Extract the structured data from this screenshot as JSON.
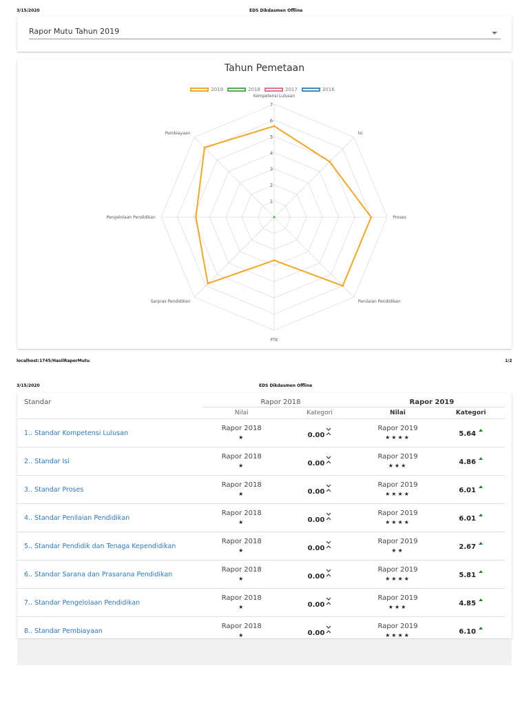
{
  "page1": {
    "header_date": "3/15/2020",
    "header_title": "EDS Dikdasmen Offline",
    "select_value": "Rapor Mutu Tahun 2019",
    "footer_url": "localhost:1745/HasilRaporMutu",
    "footer_page": "1/2"
  },
  "page2": {
    "header_date": "3/15/2020",
    "header_title": "EDS Dikdasmen Offline"
  },
  "chart_data": {
    "type": "radar",
    "title": "Tahun Pemetaan",
    "axes": [
      "Kompetensi Lulusan",
      "Isi",
      "Proses",
      "Penilaian Pendidikan",
      "PTK",
      "Sarpras Pendidikan",
      "Pengelolaan Pendidikan",
      "Pembiayaan"
    ],
    "tick_labels": [
      "1",
      "2",
      "3",
      "4",
      "5",
      "6",
      "7"
    ],
    "range": [
      0,
      7
    ],
    "series": [
      {
        "name": "2019",
        "color": "#f5a623",
        "values": [
          5.64,
          4.86,
          6.01,
          6.01,
          2.67,
          5.81,
          4.85,
          6.1
        ]
      },
      {
        "name": "2018",
        "color": "#4caf50",
        "values": [
          0,
          0,
          0,
          0,
          0,
          0,
          0,
          0
        ]
      },
      {
        "name": "2017",
        "color": "#e57385",
        "values": []
      },
      {
        "name": "2016",
        "color": "#3a8fc2",
        "values": []
      }
    ]
  },
  "table": {
    "col_standar": "Standar",
    "group_2018": "Rapor 2018",
    "group_2019": "Rapor 2019",
    "sub_nilai": "Nilai",
    "sub_nilai_2019": "Nilai",
    "sub_kategori": "Kategori",
    "sub_kategori_2019": "Kategori",
    "rows": [
      {
        "name": "1.. Standar Kompetensi Lulusan",
        "r18": "Rapor 2018",
        "s18": "★",
        "v18": "0.00",
        "r19": "Rapor 2019",
        "s19": "★★★★",
        "v19": "5.64"
      },
      {
        "name": "2.. Standar Isi",
        "r18": "Rapor 2018",
        "s18": "★",
        "v18": "0.00",
        "r19": "Rapor 2019",
        "s19": "★★★",
        "v19": "4.86"
      },
      {
        "name": "3.. Standar Proses",
        "r18": "Rapor 2018",
        "s18": "★",
        "v18": "0.00",
        "r19": "Rapor 2019",
        "s19": "★★★★",
        "v19": "6.01"
      },
      {
        "name": "4.. Standar Penilaian Pendidikan",
        "r18": "Rapor 2018",
        "s18": "★",
        "v18": "0.00",
        "r19": "Rapor 2019",
        "s19": "★★★★",
        "v19": "6.01"
      },
      {
        "name": "5.. Standar Pendidik dan Tenaga Kependidikan",
        "r18": "Rapor 2018",
        "s18": "★",
        "v18": "0.00",
        "r19": "Rapor 2019",
        "s19": "★★",
        "v19": "2.67"
      },
      {
        "name": "6.. Standar Sarana dan Prasarana Pendidikan",
        "r18": "Rapor 2018",
        "s18": "★",
        "v18": "0.00",
        "r19": "Rapor 2019",
        "s19": "★★★★",
        "v19": "5.81"
      },
      {
        "name": "7.. Standar Pengelolaan Pendidikan",
        "r18": "Rapor 2018",
        "s18": "★",
        "v18": "0.00",
        "r19": "Rapor 2019",
        "s19": "★★★",
        "v19": "4.85"
      },
      {
        "name": "8.. Standar Pembiayaan",
        "r18": "Rapor 2018",
        "s18": "★",
        "v18": "0.00",
        "r19": "Rapor 2019",
        "s19": "★★★★",
        "v19": "6.10"
      }
    ]
  }
}
